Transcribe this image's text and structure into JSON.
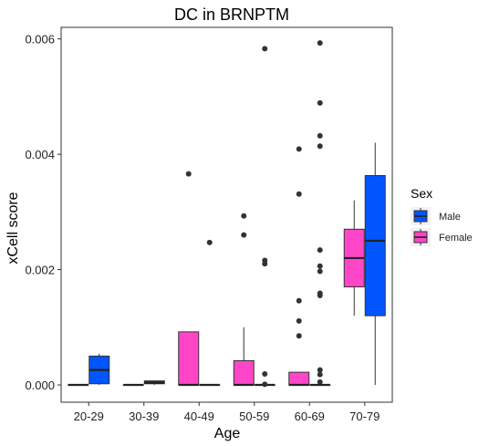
{
  "chart_data": {
    "type": "boxplot",
    "title": "DC in BRNPTM",
    "xlabel": "Age",
    "ylabel": "xCell score",
    "categories": [
      "20-29",
      "30-39",
      "40-49",
      "50-59",
      "60-69",
      "70-79"
    ],
    "ylim": [
      -0.0003,
      0.0062
    ],
    "yticks": [
      0.0,
      0.002,
      0.004,
      0.006
    ],
    "ytick_labels": [
      "0.000",
      "0.002",
      "0.004",
      "0.006"
    ],
    "grid": false,
    "legend": {
      "title": "Sex",
      "position": "right",
      "entries": [
        {
          "name": "Male",
          "color": "#0055FF"
        },
        {
          "name": "Female",
          "color": "#FF45C8"
        }
      ]
    },
    "groups": [
      {
        "category": "20-29",
        "sex": "Female",
        "min": 0.0,
        "q1": 0.0,
        "median": 0.0,
        "q3": 0.0,
        "max": 0.0,
        "outliers": []
      },
      {
        "category": "20-29",
        "sex": "Male",
        "min": 0.0,
        "q1": 2e-05,
        "median": 0.00026,
        "q3": 0.0005,
        "max": 0.00054,
        "outliers": []
      },
      {
        "category": "30-39",
        "sex": "Female",
        "min": 0.0,
        "q1": 0.0,
        "median": 0.0,
        "q3": 0.0,
        "max": 0.0,
        "outliers": []
      },
      {
        "category": "30-39",
        "sex": "Male",
        "min": 0.0,
        "q1": 2e-05,
        "median": 4e-05,
        "q3": 7e-05,
        "max": 8e-05,
        "outliers": []
      },
      {
        "category": "40-49",
        "sex": "Female",
        "min": 0.0,
        "q1": 0.0,
        "median": 0.0,
        "q3": 0.00092,
        "max": 0.00092,
        "outliers": [
          0.00366
        ]
      },
      {
        "category": "40-49",
        "sex": "Male",
        "min": 0.0,
        "q1": 0.0,
        "median": 0.0,
        "q3": 0.0,
        "max": 0.0,
        "outliers": [
          0.00247
        ]
      },
      {
        "category": "50-59",
        "sex": "Female",
        "min": 0.0,
        "q1": 0.0,
        "median": 0.0,
        "q3": 0.00042,
        "max": 0.001,
        "outliers": [
          0.00293,
          0.0026
        ]
      },
      {
        "category": "50-59",
        "sex": "Male",
        "min": 0.0,
        "q1": 0.0,
        "median": 0.0,
        "q3": 0.0,
        "max": 0.0,
        "outliers": [
          0.00583,
          0.00216,
          0.0021,
          0.00019,
          1e-05
        ]
      },
      {
        "category": "60-69",
        "sex": "Female",
        "min": 0.0,
        "q1": 0.0,
        "median": 0.0,
        "q3": 0.00022,
        "max": 0.00022,
        "outliers": [
          0.00409,
          0.00331,
          0.00146,
          0.00111,
          0.00085
        ]
      },
      {
        "category": "60-69",
        "sex": "Male",
        "min": 0.0,
        "q1": 0.0,
        "median": 0.0,
        "q3": 0.0,
        "max": 0.0,
        "outliers": [
          0.00593,
          0.00489,
          0.00432,
          0.00414,
          0.00234,
          0.00206,
          0.00197,
          0.00159,
          0.00155,
          0.00026,
          0.00018,
          5e-05
        ]
      },
      {
        "category": "70-79",
        "sex": "Female",
        "min": 0.0012,
        "q1": 0.0017,
        "median": 0.0022,
        "q3": 0.0027,
        "max": 0.0032,
        "outliers": []
      },
      {
        "category": "70-79",
        "sex": "Male",
        "min": 0.0,
        "q1": 0.0012,
        "median": 0.0025,
        "q3": 0.00363,
        "max": 0.0042,
        "outliers": []
      }
    ]
  }
}
